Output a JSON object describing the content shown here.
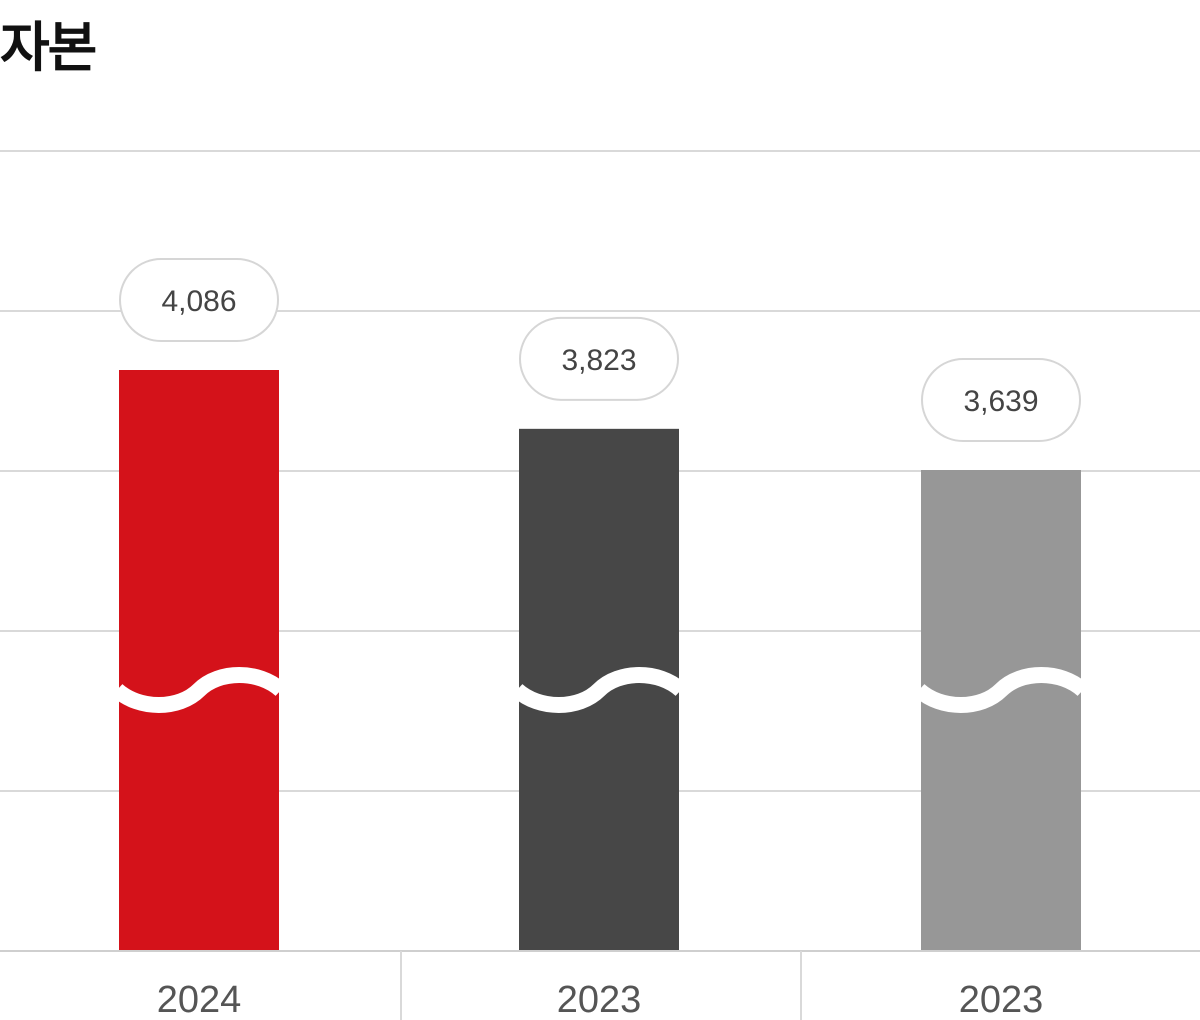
{
  "title": "자본",
  "chart_data": {
    "type": "bar",
    "title": "자본",
    "categories": [
      "2024",
      "2023",
      "2023"
    ],
    "values": [
      4086,
      3823,
      3639
    ],
    "value_labels": [
      "4,086",
      "3,823",
      "3,639"
    ],
    "bar_colors": [
      "#d4121a",
      "#474747",
      "#979797"
    ],
    "axis_break": true,
    "grid": true,
    "legend": "none"
  }
}
